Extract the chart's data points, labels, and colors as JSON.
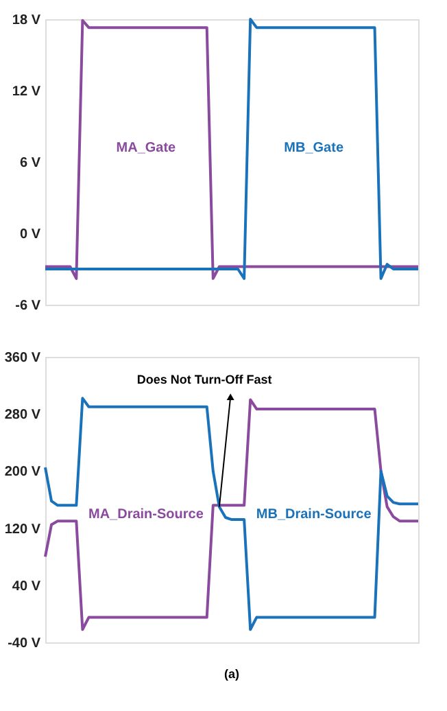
{
  "chart_data": [
    {
      "type": "line",
      "categories": [
        null,
        null,
        null,
        null,
        null,
        null,
        null,
        null,
        null,
        null,
        null,
        null,
        null,
        null,
        null,
        null,
        null,
        null,
        null,
        null,
        null,
        null,
        null,
        null,
        null,
        null,
        null,
        null,
        null,
        null,
        null,
        null,
        null,
        null,
        null,
        null,
        null,
        null,
        null,
        null,
        null,
        null,
        null,
        null,
        null,
        null,
        null,
        null,
        null,
        null,
        null,
        null,
        null,
        null,
        null,
        null,
        null,
        null,
        null,
        null,
        null
      ],
      "ylim": [
        -6,
        18
      ],
      "yticks": [
        {
          "value": -6,
          "label": "-6 V"
        },
        {
          "value": 0,
          "label": "0 V"
        },
        {
          "value": 6,
          "label": "6 V"
        },
        {
          "value": 12,
          "label": "12 V"
        },
        {
          "value": 18,
          "label": "18 V"
        }
      ],
      "tick_labels": "y",
      "grid": false,
      "marker": "none",
      "line_style": "solid",
      "series": [
        {
          "name": "MA_Gate",
          "color": "#8a4a9e",
          "values": [
            -2.8,
            -2.8,
            -2.8,
            -2.8,
            -2.8,
            -3.8,
            17.9,
            17.3,
            17.3,
            17.3,
            17.3,
            17.3,
            17.3,
            17.3,
            17.3,
            17.3,
            17.3,
            17.3,
            17.3,
            17.3,
            17.3,
            17.3,
            17.3,
            17.3,
            17.3,
            17.3,
            17.3,
            -3.8,
            -2.8,
            -2.8,
            -2.8,
            -2.8,
            -2.8,
            -2.8,
            -2.8,
            -2.8,
            -2.8,
            -2.8,
            -2.8,
            -2.8,
            -2.8,
            -2.8,
            -2.8,
            -2.8,
            -2.8,
            -2.8,
            -2.8,
            -2.8,
            -2.8,
            -2.8,
            -2.8,
            -2.8,
            -2.8,
            -2.8,
            -2.8,
            -2.8,
            -2.8,
            -2.8,
            -2.8,
            -2.8,
            -2.8
          ]
        },
        {
          "name": "MB_Gate",
          "color": "#1a73ba",
          "values": [
            -3,
            -3,
            -3,
            -3,
            -3,
            -3,
            -3,
            -3,
            -3,
            -3,
            -3,
            -3,
            -3,
            -3,
            -3,
            -3,
            -3,
            -3,
            -3,
            -3,
            -3,
            -3,
            -3,
            -3,
            -3,
            -3,
            -3,
            -3,
            -3,
            -3,
            -3,
            -3,
            -3.8,
            18,
            17.3,
            17.3,
            17.3,
            17.3,
            17.3,
            17.3,
            17.3,
            17.3,
            17.3,
            17.3,
            17.3,
            17.3,
            17.3,
            17.3,
            17.3,
            17.3,
            17.3,
            17.3,
            17.3,
            17.3,
            -3.8,
            -2.6,
            -3,
            -3,
            -3,
            -3,
            -3
          ]
        }
      ]
    },
    {
      "type": "line",
      "categories": [
        null,
        null,
        null,
        null,
        null,
        null,
        null,
        null,
        null,
        null,
        null,
        null,
        null,
        null,
        null,
        null,
        null,
        null,
        null,
        null,
        null,
        null,
        null,
        null,
        null,
        null,
        null,
        null,
        null,
        null,
        null,
        null,
        null,
        null,
        null,
        null,
        null,
        null,
        null,
        null,
        null,
        null,
        null,
        null,
        null,
        null,
        null,
        null,
        null,
        null,
        null,
        null,
        null,
        null,
        null,
        null,
        null,
        null,
        null,
        null,
        null
      ],
      "ylim": [
        -40,
        360
      ],
      "yticks": [
        {
          "value": -40,
          "label": "-40 V"
        },
        {
          "value": 40,
          "label": "40 V"
        },
        {
          "value": 120,
          "label": "120 V"
        },
        {
          "value": 200,
          "label": "200 V"
        },
        {
          "value": 280,
          "label": "280 V"
        },
        {
          "value": 360,
          "label": "360 V"
        }
      ],
      "tick_labels": "y",
      "grid": false,
      "marker": "none",
      "line_style": "solid",
      "annotations": [
        "Does Not Turn-Off Fast",
        "(a)"
      ],
      "series": [
        {
          "name": "MA_Drain-Source",
          "color": "#8a4a9e",
          "values": [
            80,
            125,
            130,
            130,
            130,
            130,
            -22,
            -5,
            -5,
            -5,
            -5,
            -5,
            -5,
            -5,
            -5,
            -5,
            -5,
            -5,
            -5,
            -5,
            -5,
            -5,
            -5,
            -5,
            -5,
            -5,
            -5,
            152,
            152,
            152,
            152,
            152,
            152,
            300,
            287,
            287,
            287,
            287,
            287,
            287,
            287,
            287,
            287,
            287,
            287,
            287,
            287,
            287,
            287,
            287,
            287,
            287,
            287,
            287,
            200,
            150,
            136,
            130,
            130,
            130,
            130
          ]
        },
        {
          "name": "MB_Drain-Source",
          "color": "#1a73ba",
          "values": [
            205,
            158,
            152,
            152,
            152,
            152,
            302,
            290,
            290,
            290,
            290,
            290,
            290,
            290,
            290,
            290,
            290,
            290,
            290,
            290,
            290,
            290,
            290,
            290,
            290,
            290,
            290,
            200,
            150,
            135,
            132,
            132,
            132,
            -22,
            -5,
            -5,
            -5,
            -5,
            -5,
            -5,
            -5,
            -5,
            -5,
            -5,
            -5,
            -5,
            -5,
            -5,
            -5,
            -5,
            -5,
            -5,
            -5,
            -5,
            200,
            165,
            156,
            154,
            154,
            154,
            154
          ]
        }
      ]
    }
  ]
}
